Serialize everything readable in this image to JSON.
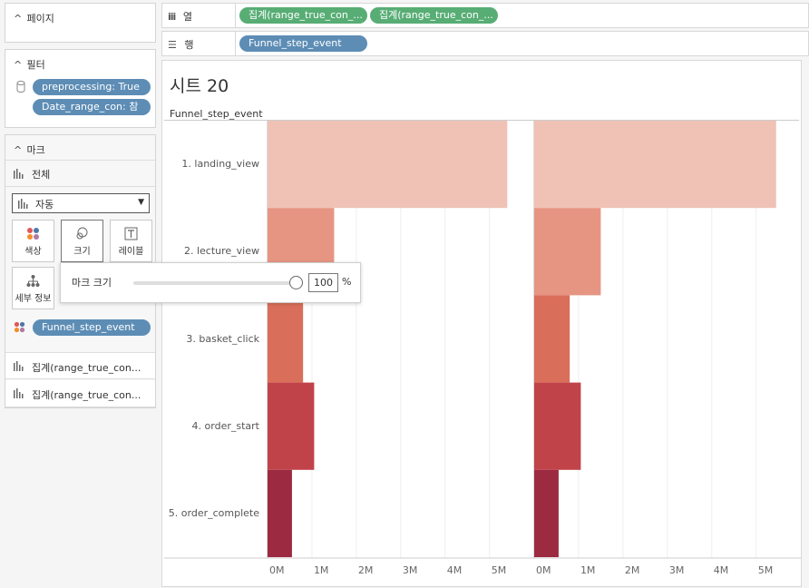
{
  "pages_card": {
    "title": "페이지"
  },
  "filters_card": {
    "title": "필터",
    "pills": [
      "preprocessing: True",
      "Date_range_con: 참"
    ]
  },
  "marks_card": {
    "title": "마크",
    "all_label": "전체",
    "mark_type": "자동",
    "buttons": {
      "color": "색상",
      "size": "크기",
      "label": "레이블",
      "detail": "세부 정보"
    },
    "color_pill": "Funnel_step_event",
    "measure_items": [
      "집계(range_true_con...",
      "집계(range_true_con..."
    ]
  },
  "columns_shelf": {
    "label": "열",
    "pills": [
      "집계(range_true_con_...",
      "집계(range_true_con_..."
    ]
  },
  "rows_shelf": {
    "label": "행",
    "pills": [
      "Funnel_step_event"
    ]
  },
  "sheet": {
    "title": "시트 20",
    "row_header": "Funnel_step_event"
  },
  "size_popup": {
    "label": "마크 크기",
    "value": "100",
    "unit": "%",
    "slider_fraction": 1.0
  },
  "colors": {
    "step1": "#efc2b5",
    "step2": "#e69582",
    "step3": "#d96e5a",
    "step4": "#c1434a",
    "step5": "#9c2a41",
    "pill_blue": "#5d8db5",
    "pill_green": "#58ad75"
  },
  "chart_data": {
    "type": "bar",
    "orientation": "horizontal",
    "categories": [
      "1. landing_view",
      "2. lecture_view",
      "3. basket_click",
      "4. order_start",
      "5. order_complete"
    ],
    "series": [
      {
        "name": "집계(range_true_con_...) #1",
        "values": [
          5400000,
          1500000,
          800000,
          1050000,
          550000
        ]
      },
      {
        "name": "집계(range_true_con_...) #2",
        "values": [
          5450000,
          1500000,
          800000,
          1050000,
          550000
        ]
      }
    ],
    "xlim": [
      0,
      5700000
    ],
    "ticks": [
      0,
      1000000,
      2000000,
      3000000,
      4000000,
      5000000
    ],
    "tick_labels": [
      "0M",
      "1M",
      "2M",
      "3M",
      "4M",
      "5M"
    ],
    "ylabel": "Funnel_step_event"
  }
}
